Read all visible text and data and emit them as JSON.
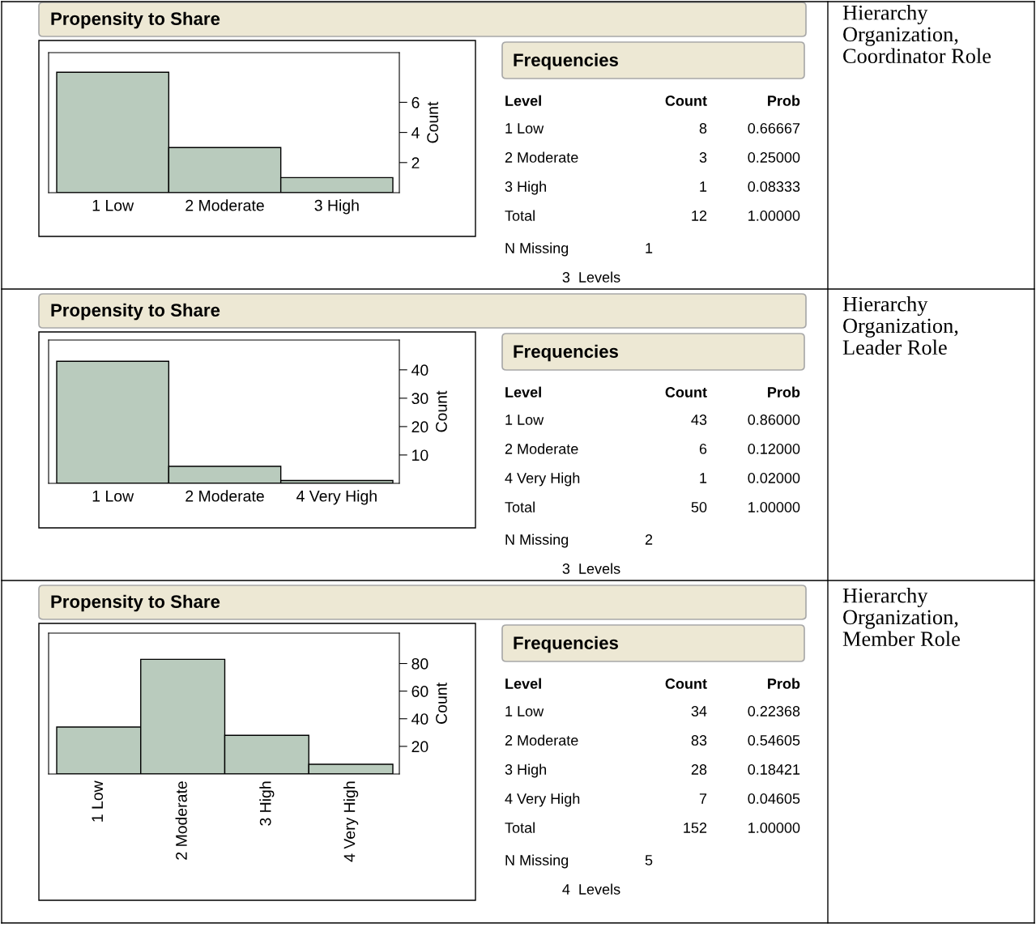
{
  "chart_data": [
    {
      "type": "bar",
      "title": "Propensity to Share",
      "ylabel": "Count",
      "categories": [
        "1 Low",
        "2 Moderate",
        "3 High"
      ],
      "values": [
        8,
        3,
        1
      ],
      "color": "#b9cbbd",
      "ylim": [
        0,
        9.3
      ],
      "yticks": [
        2,
        4,
        6
      ],
      "annotations": [
        "Frequencies",
        "Level",
        "Count",
        "Prob",
        "8",
        "0.66667",
        "3",
        "0.25000",
        "1",
        "0.08333",
        "Total",
        "12",
        "1.00000",
        "N Missing",
        "1",
        "3  Levels"
      ]
    },
    {
      "type": "other",
      "title": "Hierarchy\nOrganization,\nCoordinator Role"
    },
    {
      "type": "bar",
      "title": "Propensity to Share",
      "ylabel": "Count",
      "categories": [
        "1 Low",
        "2 Moderate",
        "4 Very High"
      ],
      "values": [
        43,
        6,
        1
      ],
      "color": "#b9cbbd",
      "ylim": [
        0,
        50.5
      ],
      "yticks": [
        10,
        20,
        30,
        40
      ],
      "annotations": [
        "Frequencies",
        "Level",
        "Count",
        "Prob",
        "43",
        "0.86000",
        "6",
        "0.12000",
        "1",
        "0.02000",
        "Total",
        "50",
        "1.00000",
        "N Missing",
        "2",
        "3  Levels"
      ]
    },
    {
      "type": "other",
      "title": "Hierarchy\nOrganization,\nLeader Role"
    },
    {
      "type": "bar",
      "title": "Propensity to Share",
      "ylabel": "Count",
      "categories": [
        "1 Low",
        "2 Moderate",
        "3 High",
        "4 Very High"
      ],
      "values": [
        34,
        83,
        28,
        7
      ],
      "color": "#b9cbbd",
      "ylim": [
        0,
        102
      ],
      "yticks": [
        20,
        40,
        60,
        80
      ],
      "annotations": [
        "Frequencies",
        "Level",
        "Count",
        "Prob",
        "34",
        "0.22368",
        "83",
        "0.54605",
        "28",
        "0.18421",
        "7",
        "0.04605",
        "Total",
        "152",
        "1.00000",
        "N Missing",
        "5",
        "4  Levels"
      ]
    },
    {
      "type": "other",
      "title": "Hierarchy\nOrganization,\nMember Role"
    }
  ]
}
